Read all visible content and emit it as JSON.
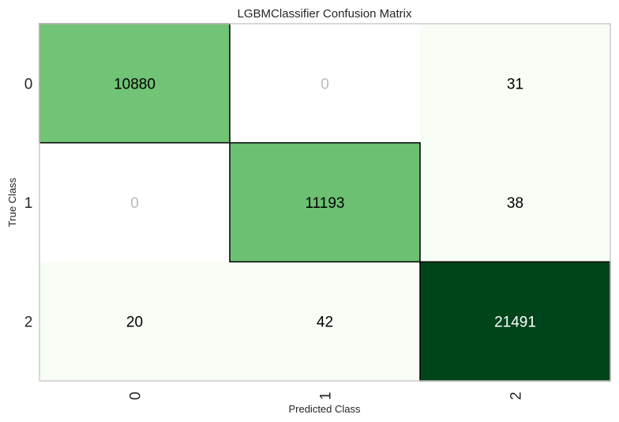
{
  "chart_data": {
    "type": "heatmap",
    "title": "LGBMClassifier Confusion Matrix",
    "xlabel": "Predicted Class",
    "ylabel": "True Class",
    "x_categories": [
      "0",
      "1",
      "2"
    ],
    "y_categories": [
      "0",
      "1",
      "2"
    ],
    "values": [
      [
        10880,
        0,
        31
      ],
      [
        0,
        11193,
        38
      ],
      [
        20,
        42,
        21491
      ]
    ],
    "colormap": "Greens",
    "zero_cell_color": "#ffffff",
    "zero_text_color": "#bbbbbb",
    "diagonal_outlined": true
  }
}
